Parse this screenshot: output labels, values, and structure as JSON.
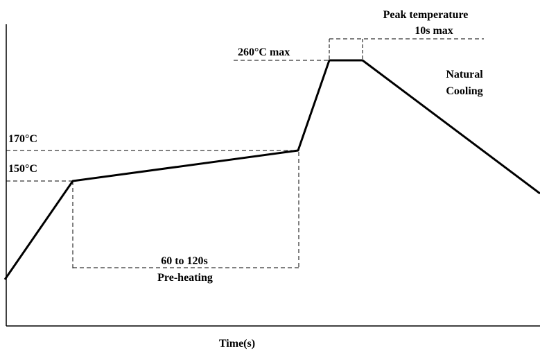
{
  "labels": {
    "peak_title": "Peak temperature",
    "peak_duration": "10s max",
    "peak_temp": "260°C max",
    "natural_cooling_line1": "Natural",
    "natural_cooling_line2": "Cooling",
    "temp_170": "170°C",
    "temp_150": "150°C",
    "preheat_duration": "60 to 120s",
    "preheat_label": "Pre-heating",
    "x_axis": "Time(s)"
  },
  "colors": {
    "line": "#000000",
    "background": "#ffffff"
  }
}
